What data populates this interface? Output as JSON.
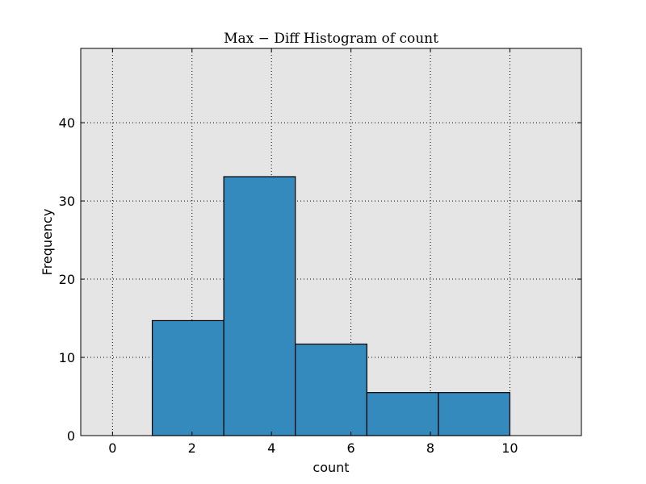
{
  "chart_data": {
    "type": "bar",
    "title": "Max − Diff Histogram of count",
    "xlabel": "count",
    "ylabel": "Frequency",
    "bins": [
      {
        "x0": 1.0,
        "x1": 2.8,
        "value": 14.7
      },
      {
        "x0": 2.8,
        "x1": 4.6,
        "value": 33.1
      },
      {
        "x0": 4.6,
        "x1": 6.4,
        "value": 11.7
      },
      {
        "x0": 6.4,
        "x1": 8.2,
        "value": 5.5
      },
      {
        "x0": 8.2,
        "x1": 10.0,
        "value": 5.5
      }
    ],
    "xlim": [
      -0.8,
      11.8
    ],
    "ylim": [
      0,
      49.5
    ],
    "xticks": [
      0,
      2,
      4,
      6,
      8,
      10
    ],
    "yticks": [
      0,
      10,
      20,
      30,
      40
    ],
    "grid": true,
    "bar_color": "#348abd",
    "bar_edge_color": "#000000",
    "plot_background": "#e5e5e5"
  }
}
